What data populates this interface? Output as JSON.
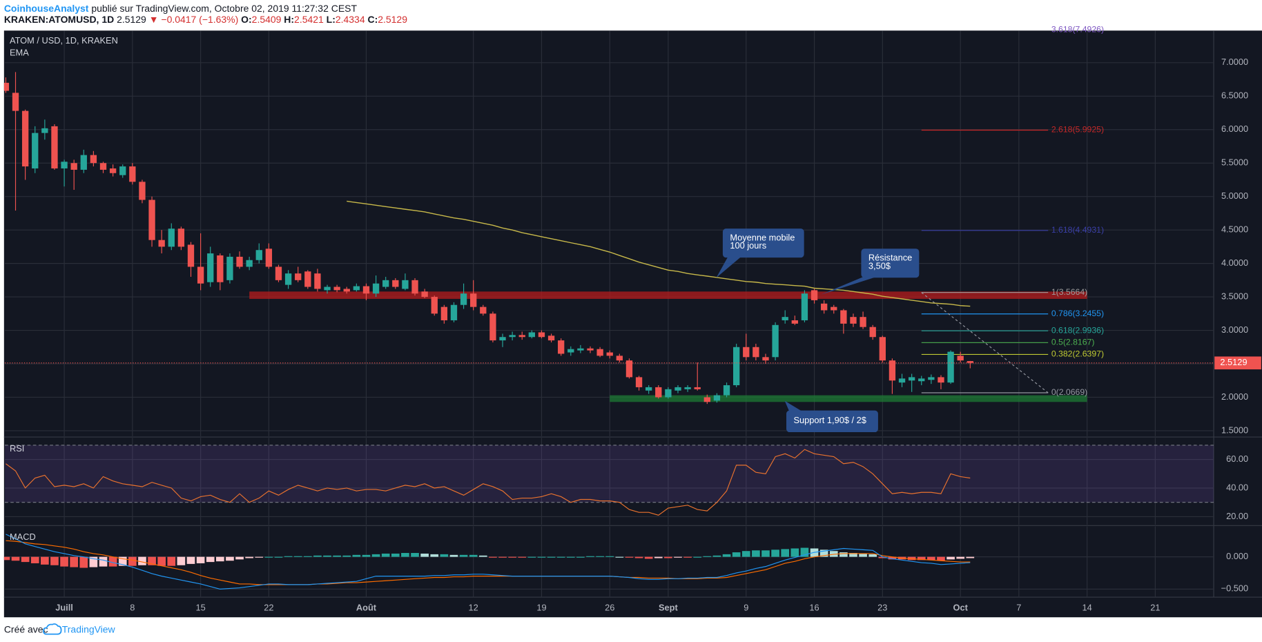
{
  "header": {
    "author": "CoinhouseAnalyst",
    "published": "publié sur TradingView.com, Octobre 02, 2019 11:27:32 CEST",
    "symbol": "KRAKEN:ATOMUSD, 1D",
    "last": "2.5129",
    "change": "▼ −0.0417 (−1.63%)",
    "ohlc": [
      {
        "key": "O:",
        "value": "2.5409"
      },
      {
        "key": "H:",
        "value": "2.5421"
      },
      {
        "key": "L:",
        "value": "2.4334"
      },
      {
        "key": "C:",
        "value": "2.5129"
      }
    ]
  },
  "footer": {
    "text": "Créé avec",
    "brand": "TradingView"
  },
  "chart_data": [
    {
      "type": "candlestick",
      "title": "ATOM / USD, 1D, KRAKEN",
      "up_color": "#26a69a",
      "down_color": "#ef5350",
      "grid": true,
      "xlim": [
        -0.1,
        124
      ],
      "xticks": [
        {
          "value": 6,
          "label": "Juill"
        },
        {
          "value": 13,
          "label": "8"
        },
        {
          "value": 20,
          "label": "15"
        },
        {
          "value": 27,
          "label": "22"
        },
        {
          "value": 37,
          "label": "Août"
        },
        {
          "value": 48,
          "label": "12"
        },
        {
          "value": 55,
          "label": "19"
        },
        {
          "value": 62,
          "label": "26"
        },
        {
          "value": 68,
          "label": "Sept"
        },
        {
          "value": 76,
          "label": "9"
        },
        {
          "value": 83,
          "label": "16"
        },
        {
          "value": 90,
          "label": "23"
        },
        {
          "value": 98,
          "label": "Oct"
        },
        {
          "value": 104,
          "label": "7"
        },
        {
          "value": 111,
          "label": "14"
        },
        {
          "value": 118,
          "label": "21"
        }
      ],
      "ylim": [
        1.43,
        7.48
      ],
      "yticks": [
        {
          "value": 1.5,
          "label": "1.5000"
        },
        {
          "value": 2,
          "label": "2.0000"
        },
        {
          "value": 2.5,
          "label": "2.5000"
        },
        {
          "value": 3,
          "label": "3.0000"
        },
        {
          "value": 3.5,
          "label": "3.5000"
        },
        {
          "value": 4,
          "label": "4.0000"
        },
        {
          "value": 4.5,
          "label": "4.5000"
        },
        {
          "value": 5,
          "label": "5.0000"
        },
        {
          "value": 5.5,
          "label": "5.5000"
        },
        {
          "value": 6,
          "label": "6.0000"
        },
        {
          "value": 6.5,
          "label": "6.5000"
        },
        {
          "value": 7,
          "label": "7.0000"
        }
      ],
      "open": [
        6.7,
        6.55,
        6.28,
        5.42,
        5.95,
        6.05,
        5.42,
        5.5,
        5.4,
        5.62,
        5.5,
        5.42,
        5.32,
        5.45,
        5.22,
        4.95,
        4.35,
        4.25,
        4.52,
        4.28,
        3.95,
        3.72,
        4.12,
        3.75,
        4.1,
        3.95,
        4.05,
        4.22,
        3.95,
        3.68,
        3.85,
        3.88,
        3.85,
        3.6,
        3.65,
        3.62,
        3.6,
        3.66,
        3.55,
        3.65,
        3.75,
        3.62,
        3.75,
        3.58,
        3.5,
        3.35,
        3.15,
        3.38,
        3.55,
        3.35,
        3.25,
        2.85,
        2.9,
        2.93,
        2.9,
        2.97,
        2.92,
        2.85,
        2.67,
        2.7,
        2.73,
        2.72,
        2.67,
        2.62,
        2.55,
        2.3,
        2.1,
        2.15,
        2.0,
        2.1,
        2.12,
        2.15,
        2.0,
        1.95,
        2.03,
        2.18,
        2.75,
        2.75,
        2.6,
        2.6,
        3.15,
        3.15,
        3.15,
        3.6,
        3.4,
        3.35,
        3.3,
        3.2,
        3.2,
        3.05,
        2.9,
        2.55,
        2.22,
        2.25,
        2.24,
        2.26,
        2.3,
        2.22,
        2.62,
        2.5409
      ],
      "high": [
        6.78,
        6.86,
        6.3,
        6.05,
        6.15,
        6.08,
        5.55,
        5.55,
        5.7,
        5.68,
        5.52,
        5.48,
        5.48,
        5.5,
        5.25,
        5.0,
        4.5,
        4.6,
        4.55,
        4.32,
        4.45,
        4.25,
        4.15,
        4.15,
        4.18,
        4.1,
        4.3,
        4.3,
        3.98,
        3.9,
        3.95,
        3.9,
        3.92,
        3.68,
        3.68,
        3.65,
        3.7,
        3.7,
        3.82,
        3.8,
        3.78,
        3.85,
        3.78,
        3.62,
        3.52,
        3.38,
        3.42,
        3.7,
        3.75,
        3.38,
        3.28,
        2.95,
        2.98,
        2.98,
        3.0,
        3.0,
        2.95,
        2.88,
        2.76,
        2.78,
        2.76,
        2.75,
        2.7,
        2.65,
        2.58,
        2.32,
        2.18,
        2.18,
        2.15,
        2.18,
        2.18,
        2.52,
        2.04,
        2.06,
        2.22,
        2.8,
        2.95,
        2.8,
        2.65,
        3.12,
        3.3,
        3.22,
        3.6,
        3.62,
        3.45,
        3.38,
        3.32,
        3.25,
        3.28,
        3.08,
        2.92,
        2.58,
        2.35,
        2.35,
        2.32,
        2.34,
        2.33,
        2.7,
        2.68,
        2.5421
      ],
      "low": [
        6.55,
        4.79,
        5.25,
        5.35,
        5.85,
        5.4,
        5.15,
        5.1,
        5.35,
        5.45,
        5.35,
        5.3,
        5.28,
        5.18,
        4.9,
        4.25,
        4.15,
        4.2,
        4.2,
        3.8,
        3.6,
        3.65,
        3.6,
        3.7,
        3.92,
        3.9,
        4.0,
        3.92,
        3.72,
        3.62,
        3.72,
        3.62,
        3.58,
        3.55,
        3.57,
        3.55,
        3.58,
        3.45,
        3.5,
        3.62,
        3.62,
        3.6,
        3.52,
        3.48,
        3.22,
        3.1,
        3.12,
        3.32,
        3.3,
        3.22,
        2.82,
        2.75,
        2.85,
        2.86,
        2.88,
        2.88,
        2.82,
        2.62,
        2.62,
        2.66,
        2.66,
        2.6,
        2.58,
        2.52,
        2.28,
        2.1,
        2.05,
        1.98,
        1.98,
        2.06,
        2.08,
        2.1,
        1.9,
        1.92,
        2.0,
        2.15,
        2.55,
        2.55,
        2.5,
        2.55,
        3.1,
        3.08,
        3.12,
        3.4,
        3.25,
        3.25,
        2.95,
        3.05,
        3.02,
        2.86,
        2.52,
        2.05,
        2.15,
        2.08,
        2.18,
        2.2,
        2.12,
        2.2,
        2.52,
        2.4334
      ],
      "close": [
        6.58,
        6.28,
        5.45,
        5.95,
        6.02,
        5.42,
        5.52,
        5.4,
        5.62,
        5.5,
        5.4,
        5.35,
        5.45,
        5.22,
        4.95,
        4.35,
        4.25,
        4.52,
        4.25,
        3.95,
        3.7,
        4.15,
        3.72,
        4.1,
        3.95,
        4.05,
        4.2,
        3.95,
        3.75,
        3.85,
        3.75,
        3.65,
        3.62,
        3.65,
        3.6,
        3.58,
        3.66,
        3.55,
        3.7,
        3.75,
        3.65,
        3.75,
        3.55,
        3.5,
        3.25,
        3.15,
        3.38,
        3.55,
        3.35,
        3.25,
        2.85,
        2.9,
        2.93,
        2.9,
        2.97,
        2.9,
        2.85,
        2.65,
        2.72,
        2.73,
        2.7,
        2.62,
        2.62,
        2.55,
        2.3,
        2.15,
        2.15,
        2.0,
        2.12,
        2.15,
        2.15,
        2.12,
        1.93,
        2.03,
        2.18,
        2.75,
        2.6,
        2.6,
        2.55,
        3.08,
        3.2,
        3.1,
        3.55,
        3.45,
        3.3,
        3.3,
        3.1,
        3.1,
        3.05,
        2.9,
        2.55,
        2.25,
        2.28,
        2.3,
        2.28,
        2.3,
        2.22,
        2.68,
        2.55,
        2.5129
      ],
      "series": [
        {
          "name": "EMA",
          "color": "#c8b94a",
          "values": [
            null,
            null,
            null,
            null,
            null,
            null,
            null,
            null,
            null,
            null,
            null,
            null,
            null,
            null,
            null,
            null,
            null,
            null,
            null,
            null,
            null,
            null,
            null,
            null,
            null,
            null,
            null,
            null,
            null,
            null,
            null,
            null,
            null,
            null,
            null,
            4.93,
            4.91,
            4.89,
            4.87,
            4.85,
            4.83,
            4.81,
            4.79,
            4.77,
            4.74,
            4.71,
            4.68,
            4.66,
            4.63,
            4.6,
            4.57,
            4.53,
            4.5,
            4.46,
            4.43,
            4.4,
            4.37,
            4.34,
            4.31,
            4.28,
            4.25,
            4.21,
            4.17,
            4.12,
            4.07,
            4.02,
            3.98,
            3.94,
            3.9,
            3.88,
            3.85,
            3.83,
            3.81,
            3.79,
            3.77,
            3.75,
            3.73,
            3.72,
            3.7,
            3.69,
            3.68,
            3.67,
            3.66,
            3.63,
            3.62,
            3.61,
            3.6,
            3.58,
            3.56,
            3.54,
            3.51,
            3.49,
            3.47,
            3.45,
            3.43,
            3.41,
            3.4,
            3.39,
            3.37,
            3.36
          ]
        }
      ],
      "zones": [
        {
          "low": 3.47,
          "high": 3.58,
          "from": 25,
          "to": 111,
          "color": "#b71c1c"
        },
        {
          "low": 1.93,
          "high": 2.03,
          "from": 62,
          "to": 111,
          "color": "#1e7b34"
        }
      ],
      "fib": {
        "from": 94,
        "to": 107,
        "trend_color": "#9598a1",
        "levels": [
          {
            "label": "3.618(7.4926)",
            "value": 7.4926,
            "color": "#7e57c2"
          },
          {
            "label": "2.618(5.9925)",
            "value": 5.9925,
            "color": "#c62828"
          },
          {
            "label": "1.618(4.4931)",
            "value": 4.4931,
            "color": "#3a3fa8"
          },
          {
            "label": "1(3.5664)",
            "value": 3.5664,
            "color": "#9e9e9e"
          },
          {
            "label": "0.786(3.2455)",
            "value": 3.2455,
            "color": "#2196f3"
          },
          {
            "label": "0.618(2.9936)",
            "value": 2.9936,
            "color": "#26a69a"
          },
          {
            "label": "0.5(2.8167)",
            "value": 2.8167,
            "color": "#4caf50"
          },
          {
            "label": "0.382(2.6397)",
            "value": 2.6397,
            "color": "#c0ca33"
          },
          {
            "label": "0(2.0669)",
            "value": 2.0669,
            "color": "#9598a1"
          }
        ]
      },
      "last_price": {
        "value": 2.5129,
        "color": "#ef5350"
      },
      "annotations": [
        {
          "lines": [
            "Moyenne mobile",
            "100 jours"
          ]
        },
        {
          "lines": [
            "Résistance",
            "3,50$"
          ]
        },
        {
          "lines": [
            "Support 1,90$ / 2$"
          ]
        }
      ],
      "annotation_color": "#2a4e8c"
    },
    {
      "type": "line",
      "title": "RSI",
      "color": "#e9722e",
      "band": [
        30,
        70
      ],
      "band_color": "#7e57c2",
      "ylim": [
        14.9,
        74.6
      ],
      "yticks": [
        {
          "value": 20,
          "label": "20.00"
        },
        {
          "value": 40,
          "label": "40.00"
        },
        {
          "value": 60,
          "label": "60.00"
        }
      ],
      "values": [
        57,
        52,
        40,
        47,
        49,
        41,
        42,
        41,
        43,
        40,
        48,
        45,
        43,
        42,
        41,
        44,
        42,
        40,
        33,
        31,
        34,
        35,
        32,
        30,
        36,
        30,
        33,
        38,
        35,
        39,
        42,
        40,
        38,
        40,
        39,
        40,
        38,
        39,
        39,
        38,
        40,
        42,
        41,
        43,
        40,
        41,
        38,
        35,
        39,
        43,
        41,
        38,
        32,
        33,
        33,
        34,
        36,
        34,
        30,
        32,
        32,
        31,
        31,
        30,
        25,
        23,
        23,
        21,
        26,
        27,
        28,
        25,
        24,
        30,
        38,
        56,
        56,
        51,
        50,
        62,
        64,
        61,
        67,
        64,
        63,
        62,
        57,
        58,
        55,
        50,
        43,
        36,
        37,
        36,
        37,
        37,
        36,
        50,
        48,
        47
      ]
    },
    {
      "type": "macd",
      "title": "MACD",
      "ylim": [
        -0.625,
        0.46
      ],
      "yticks": [
        {
          "value": 0,
          "label": "0.000"
        },
        {
          "value": -0.5,
          "label": "−0.500"
        }
      ],
      "hist_colors": {
        "up_rising": "#26a69a",
        "up_falling": "#b2dfdb",
        "down_falling": "#ef5350",
        "down_rising": "#ffcdd2"
      },
      "histogram": [
        -0.05,
        -0.06,
        -0.08,
        -0.1,
        -0.12,
        -0.13,
        -0.15,
        -0.16,
        -0.17,
        -0.16,
        -0.15,
        -0.15,
        -0.14,
        -0.14,
        -0.13,
        -0.13,
        -0.14,
        -0.14,
        -0.13,
        -0.11,
        -0.1,
        -0.08,
        -0.07,
        -0.06,
        -0.04,
        -0.02,
        -0.01,
        0.0,
        0.0,
        0.01,
        0.01,
        0.01,
        0.02,
        0.02,
        0.02,
        0.02,
        0.03,
        0.03,
        0.04,
        0.05,
        0.05,
        0.06,
        0.06,
        0.05,
        0.04,
        0.04,
        0.03,
        0.03,
        0.03,
        0.02,
        -0.01,
        -0.01,
        -0.01,
        -0.01,
        0.0,
        0.0,
        0.0,
        0.0,
        0.0,
        0.0,
        0.01,
        0.01,
        0.01,
        0.0,
        -0.01,
        -0.02,
        -0.03,
        -0.02,
        -0.02,
        -0.01,
        -0.01,
        0.0,
        0.01,
        0.02,
        0.04,
        0.07,
        0.09,
        0.1,
        0.1,
        0.11,
        0.12,
        0.13,
        0.14,
        0.13,
        0.11,
        0.09,
        0.07,
        0.06,
        0.05,
        0.04,
        -0.02,
        -0.04,
        -0.04,
        -0.05,
        -0.05,
        -0.05,
        -0.06,
        -0.04,
        -0.03,
        -0.02
      ],
      "macd": {
        "color": "#2196f3",
        "values": [
          0.35,
          0.28,
          0.2,
          0.16,
          0.12,
          0.08,
          0.05,
          0.02,
          0.0,
          -0.03,
          -0.05,
          -0.09,
          -0.12,
          -0.16,
          -0.21,
          -0.26,
          -0.3,
          -0.33,
          -0.36,
          -0.39,
          -0.42,
          -0.46,
          -0.5,
          -0.49,
          -0.48,
          -0.46,
          -0.44,
          -0.42,
          -0.42,
          -0.43,
          -0.43,
          -0.43,
          -0.42,
          -0.41,
          -0.4,
          -0.39,
          -0.38,
          -0.34,
          -0.3,
          -0.3,
          -0.3,
          -0.3,
          -0.3,
          -0.3,
          -0.29,
          -0.29,
          -0.28,
          -0.28,
          -0.27,
          -0.27,
          -0.28,
          -0.29,
          -0.3,
          -0.3,
          -0.3,
          -0.3,
          -0.3,
          -0.3,
          -0.3,
          -0.3,
          -0.3,
          -0.3,
          -0.3,
          -0.31,
          -0.32,
          -0.34,
          -0.35,
          -0.35,
          -0.34,
          -0.34,
          -0.33,
          -0.33,
          -0.32,
          -0.32,
          -0.29,
          -0.25,
          -0.22,
          -0.18,
          -0.15,
          -0.1,
          -0.05,
          -0.01,
          0.03,
          0.07,
          0.09,
          0.11,
          0.13,
          0.12,
          0.11,
          0.1,
          0.0,
          -0.03,
          -0.05,
          -0.07,
          -0.09,
          -0.1,
          -0.12,
          -0.11,
          -0.1,
          -0.09
        ]
      },
      "signal": {
        "color": "#ff6d00",
        "values": [
          0.25,
          0.24,
          0.22,
          0.2,
          0.19,
          0.17,
          0.15,
          0.12,
          0.08,
          0.05,
          0.03,
          0.0,
          -0.03,
          -0.05,
          -0.08,
          -0.11,
          -0.14,
          -0.17,
          -0.2,
          -0.24,
          -0.29,
          -0.33,
          -0.36,
          -0.39,
          -0.42,
          -0.42,
          -0.43,
          -0.43,
          -0.43,
          -0.43,
          -0.43,
          -0.43,
          -0.42,
          -0.42,
          -0.41,
          -0.4,
          -0.4,
          -0.39,
          -0.38,
          -0.37,
          -0.36,
          -0.35,
          -0.34,
          -0.33,
          -0.32,
          -0.32,
          -0.31,
          -0.31,
          -0.3,
          -0.3,
          -0.3,
          -0.3,
          -0.3,
          -0.3,
          -0.3,
          -0.3,
          -0.3,
          -0.3,
          -0.3,
          -0.3,
          -0.3,
          -0.3,
          -0.3,
          -0.31,
          -0.32,
          -0.32,
          -0.33,
          -0.33,
          -0.33,
          -0.34,
          -0.34,
          -0.34,
          -0.33,
          -0.33,
          -0.32,
          -0.29,
          -0.26,
          -0.23,
          -0.2,
          -0.15,
          -0.1,
          -0.07,
          -0.03,
          0.0,
          0.02,
          0.04,
          0.05,
          0.05,
          0.05,
          0.05,
          0.02,
          0.0,
          -0.02,
          -0.03,
          -0.04,
          -0.05,
          -0.06,
          -0.07,
          -0.08,
          -0.08
        ]
      }
    }
  ]
}
